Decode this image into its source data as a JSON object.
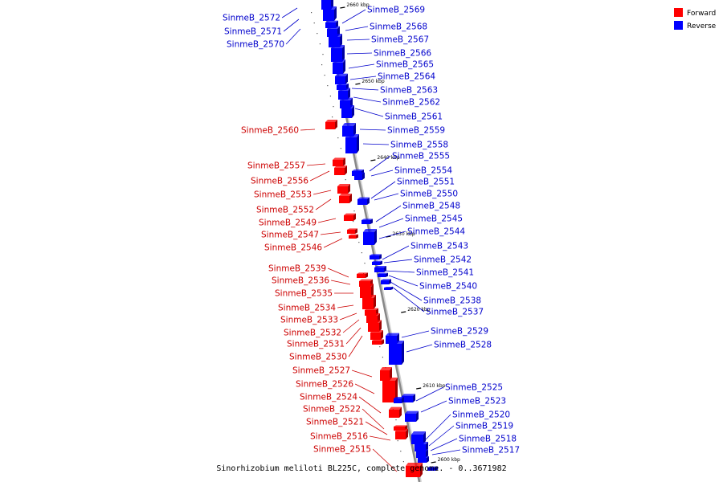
{
  "caption": "Sinorhizobium meliloti BL225C, complete genome. - 0..3671982",
  "legend": [
    {
      "label": "Forward",
      "color": "#ff0000"
    },
    {
      "label": "Reverse",
      "color": "#0000ff"
    }
  ],
  "colors": {
    "forward_label": "#cc0000",
    "reverse_label": "#0000cc",
    "backbone": "#888888"
  },
  "ticks": [
    "2660 kbp",
    "2650 kbp",
    "2640 kbp",
    "2630 kbp",
    "2620 kbp",
    "2610 kbp",
    "2600 kbp"
  ],
  "forward_genes": [
    "SinmeB_2560",
    "SinmeB_2557",
    "SinmeB_2556",
    "SinmeB_2553",
    "SinmeB_2552",
    "SinmeB_2549",
    "SinmeB_2547",
    "SinmeB_2546",
    "SinmeB_2539",
    "SinmeB_2536",
    "SinmeB_2535",
    "SinmeB_2534",
    "SinmeB_2533",
    "SinmeB_2532",
    "SinmeB_2531",
    "SinmeB_2530",
    "SinmeB_2527",
    "SinmeB_2526",
    "SinmeB_2524",
    "SinmeB_2522",
    "SinmeB_2521",
    "SinmeB_2516",
    "SinmeB_2515"
  ],
  "reverse_genes": [
    "SinmeB_2572",
    "SinmeB_2571",
    "SinmeB_2570",
    "SinmeB_2569",
    "SinmeB_2568",
    "SinmeB_2567",
    "SinmeB_2566",
    "SinmeB_2565",
    "SinmeB_2564",
    "SinmeB_2563",
    "SinmeB_2562",
    "SinmeB_2561",
    "SinmeB_2559",
    "SinmeB_2558",
    "SinmeB_2555",
    "SinmeB_2554",
    "SinmeB_2551",
    "SinmeB_2550",
    "SinmeB_2548",
    "SinmeB_2545",
    "SinmeB_2544",
    "SinmeB_2543",
    "SinmeB_2542",
    "SinmeB_2541",
    "SinmeB_2540",
    "SinmeB_2538",
    "SinmeB_2537",
    "SinmeB_2529",
    "SinmeB_2528",
    "SinmeB_2525",
    "SinmeB_2523",
    "SinmeB_2520",
    "SinmeB_2519",
    "SinmeB_2518",
    "SinmeB_2517"
  ]
}
